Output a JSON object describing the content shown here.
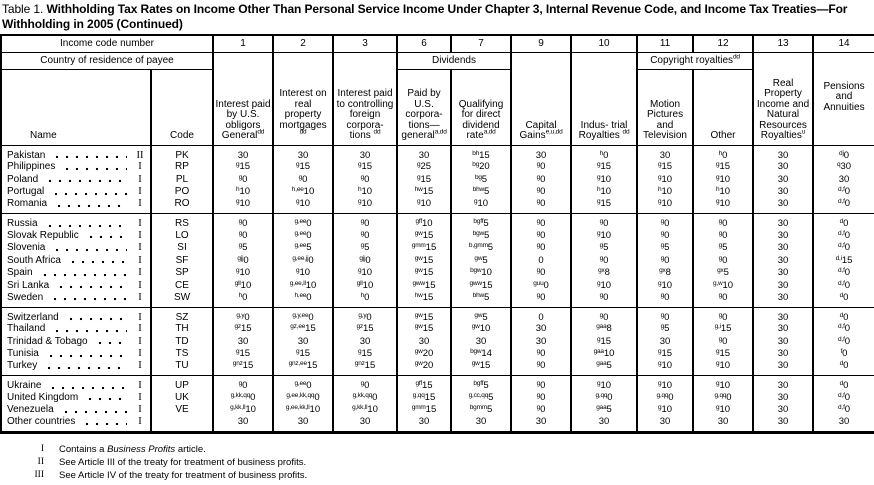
{
  "title": {
    "label": "Table 1.",
    "text": "Withholding Tax Rates on Income Other Than Personal Service Income Under Chapter 3, Internal Revenue Code, and Income Tax Treaties—For Withholding in 2005 (Continued)"
  },
  "table": {
    "income_code_row_label": "Income code number",
    "country_row_label": "Country of residence of payee",
    "code_numbers": [
      "1",
      "2",
      "3",
      "6",
      "7",
      "9",
      "10",
      "11",
      "12",
      "13",
      "14"
    ],
    "dividends_group_label": "Dividends",
    "copyright_group_label": "Copyright royalties",
    "copyright_group_sup": "dd",
    "name_col_label": "Name",
    "code_col_label": "Code",
    "columns": [
      {
        "text": "Interest paid by U.S. obligors General",
        "sup": "dd"
      },
      {
        "text": "Interest on real property mortgages",
        "sup": "dd"
      },
      {
        "text": "Interest paid to controlling foreign corpora- tions",
        "sup": "dd"
      },
      {
        "text": "Paid by U.S. corpora- tions— general",
        "sup": "a,dd"
      },
      {
        "text": "Qualifying for direct dividend rate",
        "sup": "a,dd"
      },
      {
        "text": "Capital Gains",
        "sup": "e,u,dd"
      },
      {
        "text": "Indus- trial Royalties",
        "sup": "dd"
      },
      {
        "text": "Motion Pictures and Television",
        "sup": ""
      },
      {
        "text": "Other",
        "sup": ""
      },
      {
        "text": "Real Property Income and Natural Resources Royalties",
        "sup": "u"
      },
      {
        "text": "Pensions and Annuities",
        "sup": ""
      }
    ],
    "groups": [
      {
        "rows": [
          {
            "name": "Pakistan",
            "treaty": "II",
            "code": "PK",
            "values": [
              "30",
              "30",
              "30",
              "30",
              "bh15",
              "30",
              "h0",
              "30",
              "h0",
              "30",
              "dj0"
            ]
          },
          {
            "name": "Philippines",
            "treaty": "I",
            "code": "RP",
            "values": [
              "g15",
              "g15",
              "g15",
              "g25",
              "bg20",
              "g0",
              "g15",
              "g15",
              "g15",
              "30",
              "q30"
            ]
          },
          {
            "name": "Poland",
            "treaty": "I",
            "code": "PL",
            "values": [
              "g0",
              "g0",
              "g0",
              "g15",
              "bg5",
              "g0",
              "g10",
              "g10",
              "g10",
              "30",
              "30"
            ]
          },
          {
            "name": "Portugal",
            "treaty": "I",
            "code": "PO",
            "values": [
              "h10",
              "h,ee10",
              "h10",
              "hw15",
              "bhw5",
              "g0",
              "h10",
              "h10",
              "h10",
              "30",
              "d,f0"
            ]
          },
          {
            "name": "Romania",
            "treaty": "I",
            "code": "RO",
            "values": [
              "g10",
              "g10",
              "g10",
              "g10",
              "g10",
              "g0",
              "g15",
              "g10",
              "g10",
              "30",
              "d,f0"
            ]
          }
        ]
      },
      {
        "rows": [
          {
            "name": "Russia",
            "treaty": "I",
            "code": "RS",
            "values": [
              "g0",
              "g,ee0",
              "g0",
              "gff10",
              "bgff5",
              "g0",
              "g0",
              "g0",
              "g0",
              "30",
              "d0"
            ]
          },
          {
            "name": "Slovak Republic",
            "treaty": "I",
            "code": "LO",
            "values": [
              "g0",
              "g,ee0",
              "g0",
              "gw15",
              "bgw5",
              "g0",
              "g10",
              "g0",
              "g0",
              "30",
              "d,f0"
            ]
          },
          {
            "name": "Slovenia",
            "treaty": "I",
            "code": "SI",
            "values": [
              "g5",
              "g,ee5",
              "g5",
              "gmm15",
              "b,gmm5",
              "g0",
              "g5",
              "g5",
              "g5",
              "30",
              "d,f0"
            ]
          },
          {
            "name": "South Africa",
            "treaty": "I",
            "code": "SF",
            "values": [
              "gjj0",
              "g,ee,jj0",
              "gjj0",
              "gw15",
              "gw5",
              "0",
              "g0",
              "g0",
              "g0",
              "30",
              "d,i15"
            ]
          },
          {
            "name": "Spain",
            "treaty": "I",
            "code": "SP",
            "values": [
              "g10",
              "g10",
              "g10",
              "gw15",
              "bgw10",
              "g0",
              "gx8",
              "gx8",
              "gx5",
              "30",
              "d,f0"
            ]
          },
          {
            "name": "Sri Lanka",
            "treaty": "I",
            "code": "CE",
            "values": [
              "gll10",
              "g,ee,ll10",
              "gll10",
              "gww15",
              "gww15",
              "guu0",
              "g10",
              "g10",
              "g,w10",
              "30",
              "d,f0"
            ]
          },
          {
            "name": "Sweden",
            "treaty": "I",
            "code": "SW",
            "values": [
              "h0",
              "h,ee0",
              "h0",
              "hw15",
              "bhw5",
              "g0",
              "g0",
              "g0",
              "g0",
              "30",
              "d0"
            ]
          }
        ]
      },
      {
        "rows": [
          {
            "name": "Switzerland",
            "treaty": "I",
            "code": "SZ",
            "values": [
              "g,y0",
              "g,y,ee0",
              "g,y0",
              "gw15",
              "gw5",
              "0",
              "g0",
              "g0",
              "g0",
              "30",
              "d0"
            ]
          },
          {
            "name": "Thailand",
            "treaty": "I",
            "code": "TH",
            "values": [
              "gz15",
              "gz,ee15",
              "gz15",
              "gw15",
              "gw10",
              "30",
              "gaa8",
              "g5",
              "g,i15",
              "30",
              "d,f0"
            ]
          },
          {
            "name": "Trinidad & Tobago",
            "treaty": "I",
            "code": "TD",
            "values": [
              "30",
              "30",
              "30",
              "30",
              "30",
              "30",
              "g15",
              "30",
              "g0",
              "30",
              "d,f0"
            ]
          },
          {
            "name": "Tunisia",
            "treaty": "I",
            "code": "TS",
            "values": [
              "g15",
              "g15",
              "g15",
              "gw20",
              "bgw14",
              "g0",
              "gaa10",
              "g15",
              "g15",
              "30",
              "f0"
            ]
          },
          {
            "name": "Turkey",
            "treaty": "I",
            "code": "TU",
            "values": [
              "gnz15",
              "gnz,ee15",
              "gnz15",
              "gw20",
              "gw15",
              "g0",
              "gaa5",
              "g10",
              "g10",
              "30",
              "d0"
            ]
          }
        ]
      },
      {
        "rows": [
          {
            "name": "Ukraine",
            "treaty": "I",
            "code": "UP",
            "values": [
              "g0",
              "g,ee0",
              "g0",
              "gff15",
              "bgff5",
              "g0",
              "g10",
              "g10",
              "g10",
              "30",
              "d0"
            ]
          },
          {
            "name": "United Kingdom",
            "treaty": "I",
            "code": "UK",
            "values": [
              "g,kk,qq0",
              "g,ee,kk,qq0",
              "g,kk,qq0",
              "g,qq15",
              "g,cc,qq5",
              "g0",
              "g,qq0",
              "g,qq0",
              "g,qq0",
              "30",
              "d,f0"
            ]
          },
          {
            "name": "Venezuela",
            "treaty": "I",
            "code": "VE",
            "values": [
              "g,kk,ll10",
              "g,ee,kk,ll10",
              "g,kk,ll10",
              "gmm15",
              "bgmm5",
              "g0",
              "gaa5",
              "g10",
              "g10",
              "30",
              "d,f0"
            ]
          },
          {
            "name": "Other countries",
            "treaty": "I",
            "code": "",
            "values": [
              "30",
              "30",
              "30",
              "30",
              "30",
              "30",
              "30",
              "30",
              "30",
              "30",
              "30"
            ]
          }
        ]
      }
    ]
  },
  "footnotes": [
    {
      "mark": "I",
      "pre": "Contains a ",
      "italic": "Business Profits",
      "post": " article."
    },
    {
      "mark": "II",
      "pre": "See Article III of the treaty for treatment of business profits.",
      "italic": "",
      "post": ""
    },
    {
      "mark": "III",
      "pre": "See Article IV of the treaty for treatment of business profits.",
      "italic": "",
      "post": ""
    }
  ]
}
